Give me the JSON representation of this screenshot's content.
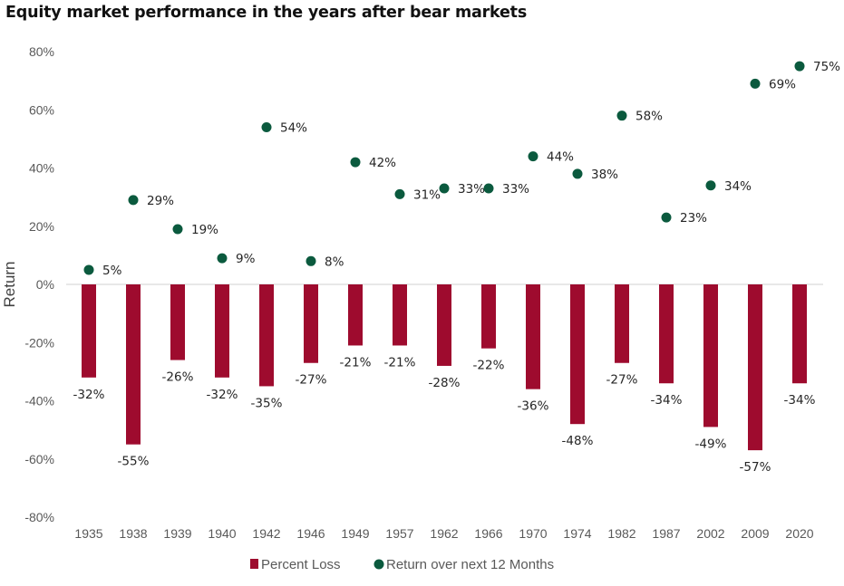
{
  "chart_data": {
    "type": "bar",
    "title": "Equity market performance in the years after bear markets",
    "xlabel": "",
    "ylabel": "Return",
    "ylim": [
      -80,
      80
    ],
    "yticks": [
      "80%",
      "60%",
      "40%",
      "20%",
      "0%",
      "-20%",
      "-40%",
      "-60%",
      "-80%"
    ],
    "ytick_values": [
      80,
      60,
      40,
      20,
      0,
      -20,
      -40,
      -60,
      -80
    ],
    "categories": [
      "1935",
      "1938",
      "1939",
      "1940",
      "1942",
      "1946",
      "1949",
      "1957",
      "1962",
      "1966",
      "1970",
      "1974",
      "1982",
      "1987",
      "2002",
      "2009",
      "2020"
    ],
    "series": [
      {
        "name": "Percent Loss",
        "type": "bar",
        "color": "#9e0b2e",
        "values": [
          -32,
          -55,
          -26,
          -32,
          -35,
          -27,
          -21,
          -21,
          -28,
          -22,
          -36,
          -48,
          -27,
          -34,
          -49,
          -57,
          -34
        ],
        "labels": [
          "-32%",
          "-55%",
          "-26%",
          "-32%",
          "-35%",
          "-27%",
          "-21%",
          "-21%",
          "-28%",
          "-22%",
          "-36%",
          "-48%",
          "-27%",
          "-34%",
          "-49%",
          "-57%",
          "-34%"
        ]
      },
      {
        "name": "Return over next 12 Months",
        "type": "scatter",
        "color": "#0b5a3e",
        "values": [
          5,
          29,
          19,
          9,
          54,
          8,
          42,
          31,
          33,
          33,
          44,
          38,
          58,
          23,
          34,
          69,
          75
        ],
        "labels": [
          "5%",
          "29%",
          "19%",
          "9%",
          "54%",
          "8%",
          "42%",
          "31%",
          "33%",
          "33%",
          "44%",
          "38%",
          "58%",
          "23%",
          "34%",
          "69%",
          "75%"
        ]
      }
    ],
    "grid": false,
    "legend_position": "bottom"
  }
}
